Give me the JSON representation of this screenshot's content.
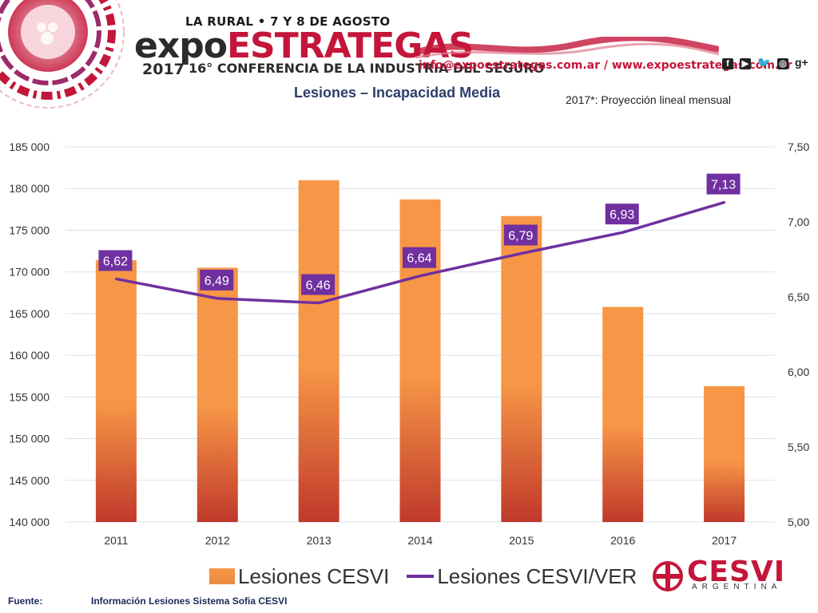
{
  "header": {
    "event_top": "LA RURAL • 7 Y 8 DE AGOSTO",
    "event_name_a": "expo",
    "event_name_b": "ESTRATEGAS",
    "year": "2017",
    "subtitle": "16° CONFERENCIA DE LA INDUSTRIA DEL SEGURO",
    "contact": "info@expoestrategas.com.ar / www.expoestrategas.com.ar",
    "social_icons": [
      "facebook-icon",
      "youtube-icon",
      "twitter-icon",
      "instagram-icon",
      "google-plus-icon"
    ],
    "gplus_label": "g+"
  },
  "chart_title": "Lesiones – Incapacidad Media",
  "chart_note": "2017*: Proyección lineal mensual",
  "colors": {
    "bar_top": "#f79646",
    "bar_bottom": "#c0392b",
    "line": "#7030a0",
    "label_bg": "#7030a0",
    "grid": "#d9e2f0",
    "brand": "#c4163a"
  },
  "chart_data": {
    "type": "bar",
    "title": "Lesiones – Incapacidad Media",
    "categories": [
      "2011",
      "2012",
      "2013",
      "2014",
      "2015",
      "2016",
      "2017"
    ],
    "series": [
      {
        "name": "Lesiones CESVI",
        "type": "bar",
        "axis": "left",
        "values": [
          171400,
          170500,
          181000,
          178700,
          176700,
          165800,
          156300
        ]
      },
      {
        "name": "Lesiones CESVI/VER",
        "type": "line",
        "axis": "right",
        "values": [
          6.62,
          6.49,
          6.46,
          6.64,
          6.79,
          6.93,
          7.13
        ],
        "labels": [
          "6,62",
          "6,49",
          "6,46",
          "6,64",
          "6,79",
          "6,93",
          "7,13"
        ]
      }
    ],
    "ylim": [
      140000,
      185000
    ],
    "y2lim": [
      5.0,
      7.5
    ],
    "y_ticks": [
      "140 000",
      "145 000",
      "150 000",
      "155 000",
      "160 000",
      "165 000",
      "170 000",
      "175 000",
      "180 000",
      "185 000"
    ],
    "y2_ticks": [
      "5,00",
      "5,50",
      "6,00",
      "6,50",
      "7,00",
      "7,50"
    ],
    "grid": true,
    "legend": "bottom"
  },
  "footer": {
    "source_label": "Fuente:",
    "source_text": "Información Lesiones  Sistema Sofia CESVI"
  },
  "logo": {
    "name": "CESVI",
    "sub": "ARGENTINA"
  }
}
